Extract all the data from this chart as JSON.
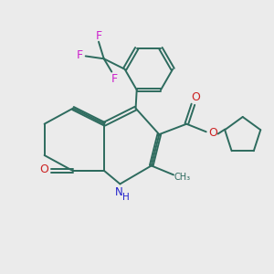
{
  "bg_color": "#ebebeb",
  "bond_color": "#2d6b5e",
  "N_color": "#2222cc",
  "O_color": "#cc2222",
  "F_color": "#cc22cc",
  "lw": 1.4,
  "fig_size": [
    3.0,
    3.0
  ],
  "dpi": 100,
  "xlim": [
    -1.0,
    9.5
  ],
  "ylim": [
    0.5,
    10.5
  ]
}
